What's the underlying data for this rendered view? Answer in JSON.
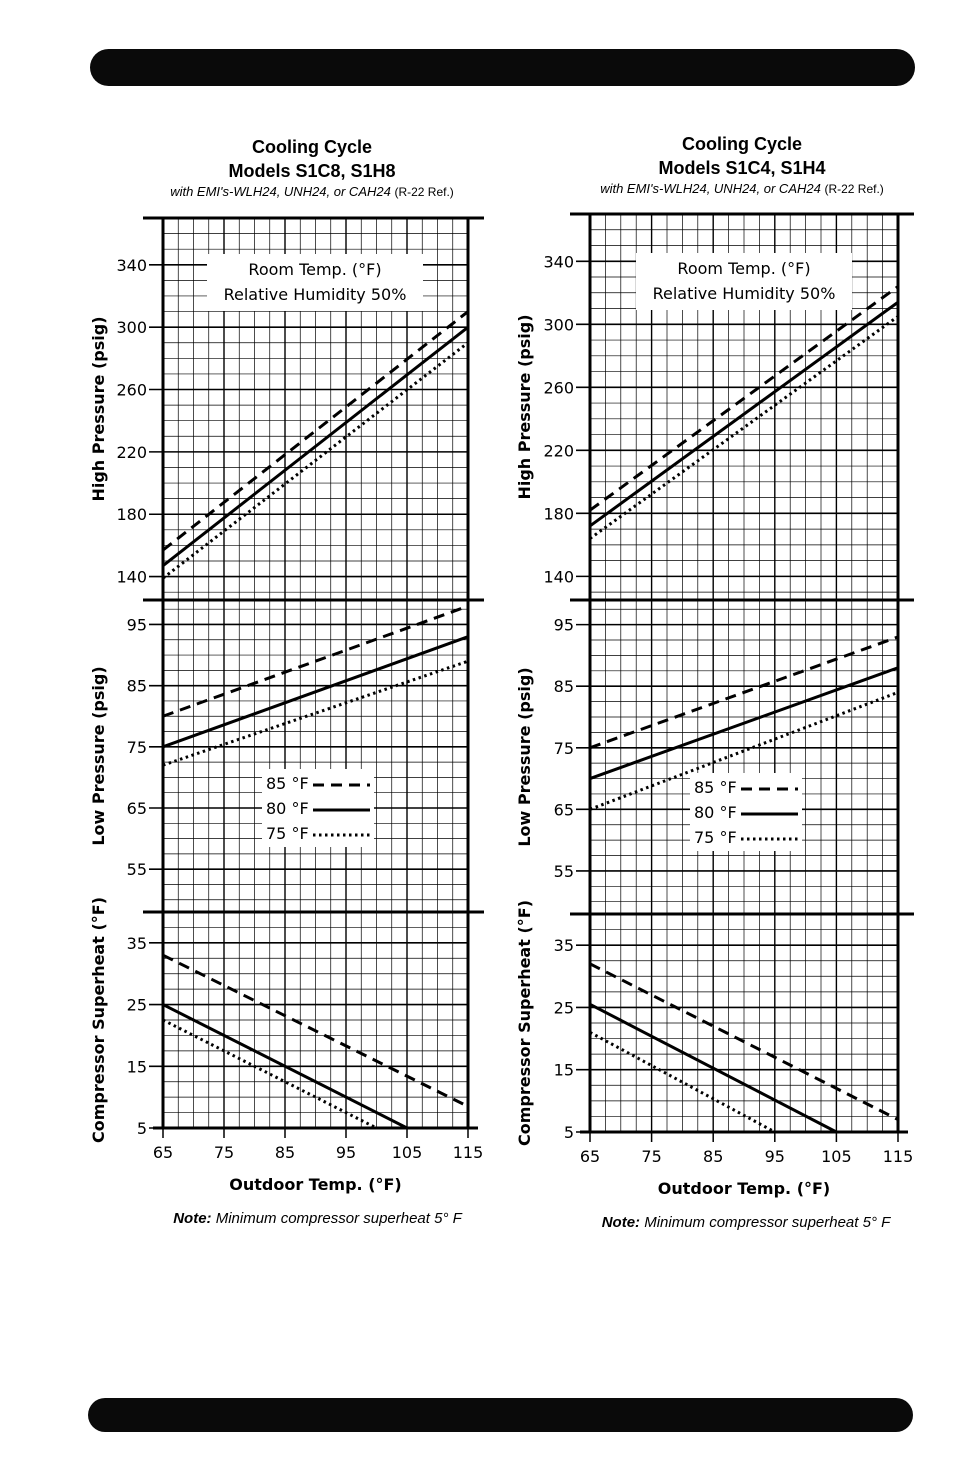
{
  "chart_data": [
    {
      "type": "line",
      "title": "Cooling Cycle",
      "subtitle": "Models S1C8, S1H8",
      "caption_italic": "with EMI's-WLH24, UNH24, or CAH24",
      "caption_plain": "(R-22 Ref.)",
      "xlabel": "Outdoor Temp. (°F)",
      "x_ticks": [
        "65",
        "75",
        "85",
        "95",
        "105",
        "115"
      ],
      "xlim": [
        65,
        115
      ],
      "note_bold": "Note:",
      "note_text": "Minimum compressor superheat  5° F",
      "room_label_1": "Room Temp. (°F)",
      "room_label_2": "Relative Humidity 50%",
      "legend": [
        {
          "name": "85 °F",
          "style": "dashed"
        },
        {
          "name": "80 °F",
          "style": "solid"
        },
        {
          "name": "75 °F",
          "style": "dotted"
        }
      ],
      "panels": [
        {
          "ylabel": "High Pressure (psig)",
          "ylim": [
            125,
            370
          ],
          "y_ticks": [
            "140",
            "180",
            "220",
            "260",
            "300",
            "340"
          ],
          "series": [
            {
              "name": "85 °F",
              "x": [
                65,
                115
              ],
              "y": [
                157,
                310
              ]
            },
            {
              "name": "80 °F",
              "x": [
                65,
                115
              ],
              "y": [
                147,
                300
              ]
            },
            {
              "name": "75 °F",
              "x": [
                65,
                115
              ],
              "y": [
                139,
                290
              ]
            }
          ]
        },
        {
          "ylabel": "Low Pressure (psig)",
          "ylim": [
            48,
            99
          ],
          "y_ticks": [
            "55",
            "65",
            "75",
            "85",
            "95"
          ],
          "series": [
            {
              "name": "85 °F",
              "x": [
                65,
                115
              ],
              "y": [
                80,
                98
              ]
            },
            {
              "name": "80 °F",
              "x": [
                65,
                115
              ],
              "y": [
                75,
                93
              ]
            },
            {
              "name": "75 °F",
              "x": [
                65,
                115
              ],
              "y": [
                72,
                89
              ]
            }
          ]
        },
        {
          "ylabel": "Compressor Superheat (°F)",
          "ylim": [
            5,
            40
          ],
          "y_ticks": [
            "5",
            "15",
            "25",
            "35"
          ],
          "series": [
            {
              "name": "85 °F",
              "x": [
                65,
                115
              ],
              "y": [
                33,
                8.5
              ]
            },
            {
              "name": "80 °F",
              "x": [
                65,
                105
              ],
              "y": [
                25,
                5
              ]
            },
            {
              "name": "75 °F",
              "x": [
                65,
                100
              ],
              "y": [
                22.5,
                5
              ]
            }
          ]
        }
      ]
    },
    {
      "type": "line",
      "title": "Cooling Cycle",
      "subtitle": "Models S1C4, S1H4",
      "caption_italic": "with EMI's-WLH24, UNH24, or CAH24",
      "caption_plain": "(R-22 Ref.)",
      "xlabel": "Outdoor Temp. (°F)",
      "x_ticks": [
        "65",
        "75",
        "85",
        "95",
        "105",
        "115"
      ],
      "xlim": [
        65,
        115
      ],
      "note_bold": "Note:",
      "note_text": "Minimum compressor superheat  5° F",
      "room_label_1": "Room Temp. (°F)",
      "room_label_2": "Relative Humidity 50%",
      "legend": [
        {
          "name": "85 °F",
          "style": "dashed"
        },
        {
          "name": "80 °F",
          "style": "solid"
        },
        {
          "name": "75 °F",
          "style": "dotted"
        }
      ],
      "panels": [
        {
          "ylabel": "High Pressure (psig)",
          "ylim": [
            125,
            370
          ],
          "y_ticks": [
            "140",
            "180",
            "220",
            "260",
            "300",
            "340"
          ],
          "series": [
            {
              "name": "85 °F",
              "x": [
                65,
                115
              ],
              "y": [
                182,
                324
              ]
            },
            {
              "name": "80 °F",
              "x": [
                65,
                115
              ],
              "y": [
                172,
                314
              ]
            },
            {
              "name": "75 °F",
              "x": [
                65,
                115
              ],
              "y": [
                164,
                305
              ]
            }
          ]
        },
        {
          "ylabel": "Low Pressure (psig)",
          "ylim": [
            48,
            99
          ],
          "y_ticks": [
            "55",
            "65",
            "75",
            "85",
            "95"
          ],
          "series": [
            {
              "name": "85 °F",
              "x": [
                65,
                115
              ],
              "y": [
                75,
                93
              ]
            },
            {
              "name": "80 °F",
              "x": [
                65,
                115
              ],
              "y": [
                70,
                88
              ]
            },
            {
              "name": "75 °F",
              "x": [
                65,
                115
              ],
              "y": [
                65,
                84
              ]
            }
          ]
        },
        {
          "ylabel": "Compressor Superheat (°F)",
          "ylim": [
            5,
            40
          ],
          "y_ticks": [
            "5",
            "15",
            "25",
            "35"
          ],
          "series": [
            {
              "name": "85 °F",
              "x": [
                65,
                115
              ],
              "y": [
                32,
                7
              ]
            },
            {
              "name": "80 °F",
              "x": [
                65,
                105
              ],
              "y": [
                25.5,
                5
              ]
            },
            {
              "name": "75 °F",
              "x": [
                65,
                95
              ],
              "y": [
                21,
                5
              ]
            }
          ]
        }
      ]
    }
  ]
}
